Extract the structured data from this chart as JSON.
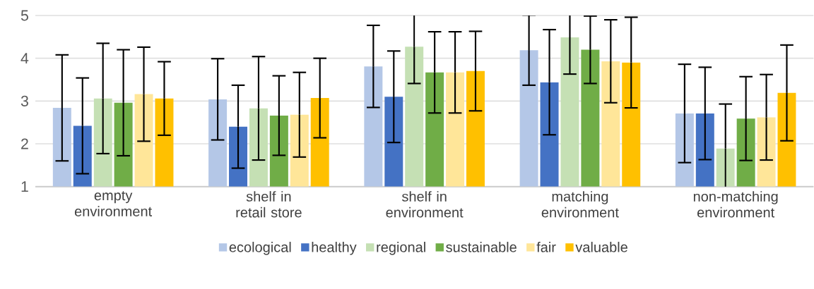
{
  "chart_data": {
    "type": "bar",
    "categories": [
      "empty environment",
      "shelf in retail store",
      "shelf in environment",
      "matching environment",
      "non-matching environment"
    ],
    "series": [
      {
        "name": "ecological",
        "color": "#b4c7e7",
        "values": [
          2.84,
          3.04,
          3.81,
          4.19,
          2.71
        ],
        "errors": [
          1.24,
          0.95,
          0.96,
          0.82,
          1.15
        ]
      },
      {
        "name": "healthy",
        "color": "#4472c4",
        "values": [
          2.42,
          2.4,
          3.1,
          3.44,
          2.71
        ],
        "errors": [
          1.12,
          0.97,
          1.07,
          1.23,
          1.08
        ]
      },
      {
        "name": "regional",
        "color": "#c5e0b4",
        "values": [
          3.06,
          2.83,
          4.27,
          4.49,
          1.89
        ],
        "errors": [
          1.29,
          1.21,
          0.86,
          0.86,
          1.04
        ]
      },
      {
        "name": "sustainable",
        "color": "#70ad47",
        "values": [
          2.96,
          2.66,
          3.67,
          4.2,
          2.59
        ],
        "errors": [
          1.24,
          0.93,
          0.95,
          0.79,
          0.98
        ]
      },
      {
        "name": "fair",
        "color": "#ffe699",
        "values": [
          3.16,
          2.68,
          3.67,
          3.93,
          2.62
        ],
        "errors": [
          1.1,
          0.99,
          0.95,
          0.97,
          1.0
        ]
      },
      {
        "name": "valuable",
        "color": "#ffc000",
        "values": [
          3.06,
          3.07,
          3.7,
          3.9,
          3.19
        ],
        "errors": [
          0.86,
          0.93,
          0.93,
          1.06,
          1.12
        ]
      }
    ],
    "ylim": [
      1,
      5
    ],
    "yticks": [
      1,
      2,
      3,
      4,
      5
    ],
    "grid": "y",
    "legend": "bottom"
  }
}
